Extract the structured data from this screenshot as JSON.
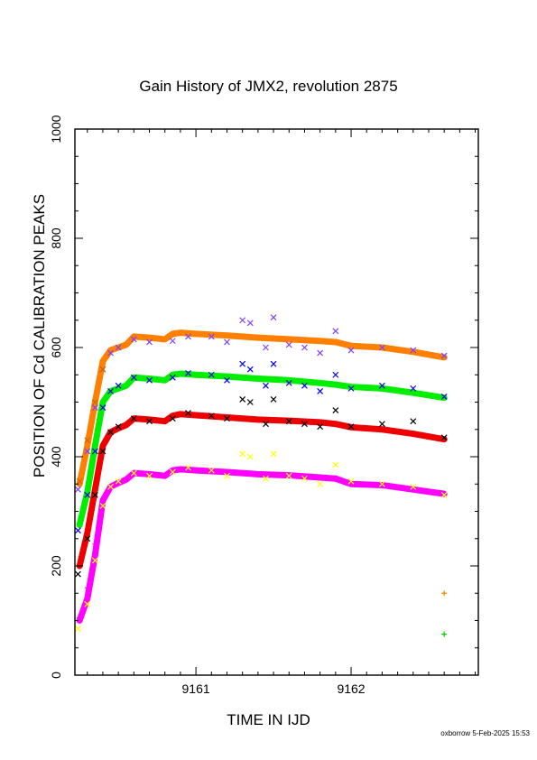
{
  "chart_data": {
    "type": "scatter",
    "title": "Gain History of JMX2, revolution 2875",
    "xlabel": "TIME IN IJD",
    "ylabel": "POSITION OF Cd CALIBRATION PEAKS",
    "xlim": [
      9160.22,
      9162.82
    ],
    "ylim": [
      0,
      1000
    ],
    "x_ticks": [
      9161,
      9162
    ],
    "y_ticks": [
      0,
      200,
      400,
      600,
      800,
      1000
    ],
    "grid": false,
    "legend": "none",
    "series": [
      {
        "color": "#ff8000",
        "marker": "line",
        "x": [
          9160.25,
          9160.3,
          9160.35,
          9160.4,
          9160.45,
          9160.5,
          9160.55,
          9160.6,
          9160.7,
          9160.8,
          9160.85,
          9160.9,
          9161.0,
          9161.2,
          9161.4,
          9161.6,
          9161.8,
          9161.9,
          9162.0,
          9162.2,
          9162.4,
          9162.6
        ],
        "y": [
          350,
          420,
          500,
          575,
          595,
          600,
          605,
          620,
          618,
          615,
          625,
          627,
          625,
          622,
          618,
          615,
          612,
          610,
          603,
          600,
          592,
          582
        ]
      },
      {
        "color": "#8040ff",
        "marker": "x",
        "x": [
          9160.24,
          9160.3,
          9160.35,
          9160.4,
          9160.45,
          9160.5,
          9160.6,
          9160.7,
          9160.85,
          9160.95,
          9161.1,
          9161.2,
          9161.3,
          9161.35,
          9161.45,
          9161.5,
          9161.6,
          9161.7,
          9161.8,
          9161.9,
          9162.0,
          9162.2,
          9162.4,
          9162.6
        ],
        "y": [
          340,
          410,
          490,
          560,
          590,
          600,
          615,
          610,
          612,
          620,
          620,
          610,
          650,
          645,
          600,
          655,
          605,
          600,
          590,
          630,
          595,
          600,
          595,
          585
        ]
      },
      {
        "color": "#00ee00",
        "marker": "line",
        "x": [
          9160.25,
          9160.3,
          9160.35,
          9160.4,
          9160.45,
          9160.5,
          9160.55,
          9160.6,
          9160.7,
          9160.8,
          9160.85,
          9160.9,
          9161.0,
          9161.2,
          9161.4,
          9161.6,
          9161.8,
          9161.9,
          9162.0,
          9162.2,
          9162.4,
          9162.6
        ],
        "y": [
          275,
          335,
          420,
          500,
          520,
          525,
          530,
          545,
          543,
          540,
          550,
          552,
          550,
          547,
          543,
          540,
          535,
          532,
          528,
          525,
          517,
          508
        ]
      },
      {
        "color": "#0000ee",
        "marker": "x",
        "x": [
          9160.24,
          9160.3,
          9160.35,
          9160.4,
          9160.45,
          9160.5,
          9160.6,
          9160.7,
          9160.85,
          9160.95,
          9161.1,
          9161.2,
          9161.3,
          9161.35,
          9161.45,
          9161.5,
          9161.6,
          9161.7,
          9161.8,
          9161.9,
          9162.0,
          9162.2,
          9162.4,
          9162.6
        ],
        "y": [
          265,
          330,
          410,
          490,
          520,
          530,
          545,
          540,
          545,
          553,
          550,
          540,
          570,
          560,
          530,
          570,
          535,
          530,
          520,
          550,
          525,
          530,
          525,
          510
        ]
      },
      {
        "color": "#ee0000",
        "marker": "line",
        "x": [
          9160.25,
          9160.3,
          9160.35,
          9160.4,
          9160.45,
          9160.5,
          9160.55,
          9160.6,
          9160.7,
          9160.8,
          9160.85,
          9160.9,
          9161.0,
          9161.2,
          9161.4,
          9161.6,
          9161.8,
          9161.9,
          9162.0,
          9162.2,
          9162.4,
          9162.6
        ],
        "y": [
          200,
          260,
          340,
          420,
          445,
          452,
          458,
          470,
          468,
          465,
          475,
          478,
          476,
          472,
          468,
          466,
          463,
          460,
          454,
          450,
          442,
          432
        ]
      },
      {
        "color": "#000000",
        "marker": "x",
        "x": [
          9160.24,
          9160.3,
          9160.35,
          9160.4,
          9160.45,
          9160.5,
          9160.6,
          9160.7,
          9160.85,
          9160.95,
          9161.1,
          9161.2,
          9161.3,
          9161.35,
          9161.45,
          9161.5,
          9161.6,
          9161.7,
          9161.8,
          9161.9,
          9162.0,
          9162.2,
          9162.4,
          9162.6
        ],
        "y": [
          185,
          250,
          330,
          410,
          445,
          455,
          470,
          465,
          470,
          480,
          475,
          470,
          505,
          500,
          460,
          505,
          465,
          460,
          455,
          485,
          455,
          460,
          465,
          435
        ]
      },
      {
        "color": "#ff00ff",
        "marker": "line",
        "x": [
          9160.25,
          9160.3,
          9160.35,
          9160.4,
          9160.45,
          9160.5,
          9160.55,
          9160.6,
          9160.7,
          9160.8,
          9160.85,
          9160.9,
          9161.0,
          9161.2,
          9161.4,
          9161.6,
          9161.8,
          9161.9,
          9162.0,
          9162.2,
          9162.4,
          9162.6
        ],
        "y": [
          100,
          140,
          220,
          320,
          345,
          352,
          358,
          370,
          368,
          365,
          375,
          377,
          375,
          372,
          368,
          366,
          362,
          360,
          350,
          348,
          340,
          332
        ]
      },
      {
        "color": "#ffff00",
        "marker": "x",
        "x": [
          9160.24,
          9160.3,
          9160.35,
          9160.4,
          9160.45,
          9160.5,
          9160.6,
          9160.7,
          9160.85,
          9160.95,
          9161.1,
          9161.2,
          9161.3,
          9161.35,
          9161.45,
          9161.5,
          9161.6,
          9161.7,
          9161.8,
          9161.9,
          9162.0,
          9162.2,
          9162.4,
          9162.6
        ],
        "y": [
          85,
          130,
          210,
          310,
          345,
          355,
          370,
          365,
          372,
          380,
          375,
          365,
          405,
          400,
          360,
          405,
          365,
          360,
          350,
          385,
          355,
          350,
          345,
          330
        ]
      },
      {
        "color": "#cc6600",
        "marker": "x",
        "x": [
          9160.25,
          9160.3,
          9160.35,
          9160.4
        ],
        "y": [
          355,
          430,
          500,
          560
        ]
      },
      {
        "color": "#ff00ff",
        "marker": "+",
        "x": [
          9160.25,
          9160.3,
          9160.35,
          9160.4
        ],
        "y": [
          105,
          160,
          240,
          320
        ]
      },
      {
        "color": "#ff8000",
        "marker": "+",
        "x": [
          9162.6
        ],
        "y": [
          150
        ]
      },
      {
        "color": "#00cc00",
        "marker": "+",
        "x": [
          9162.6
        ],
        "y": [
          75
        ]
      }
    ]
  },
  "footer": "oxborrow  5-Feb-2025 15:53"
}
